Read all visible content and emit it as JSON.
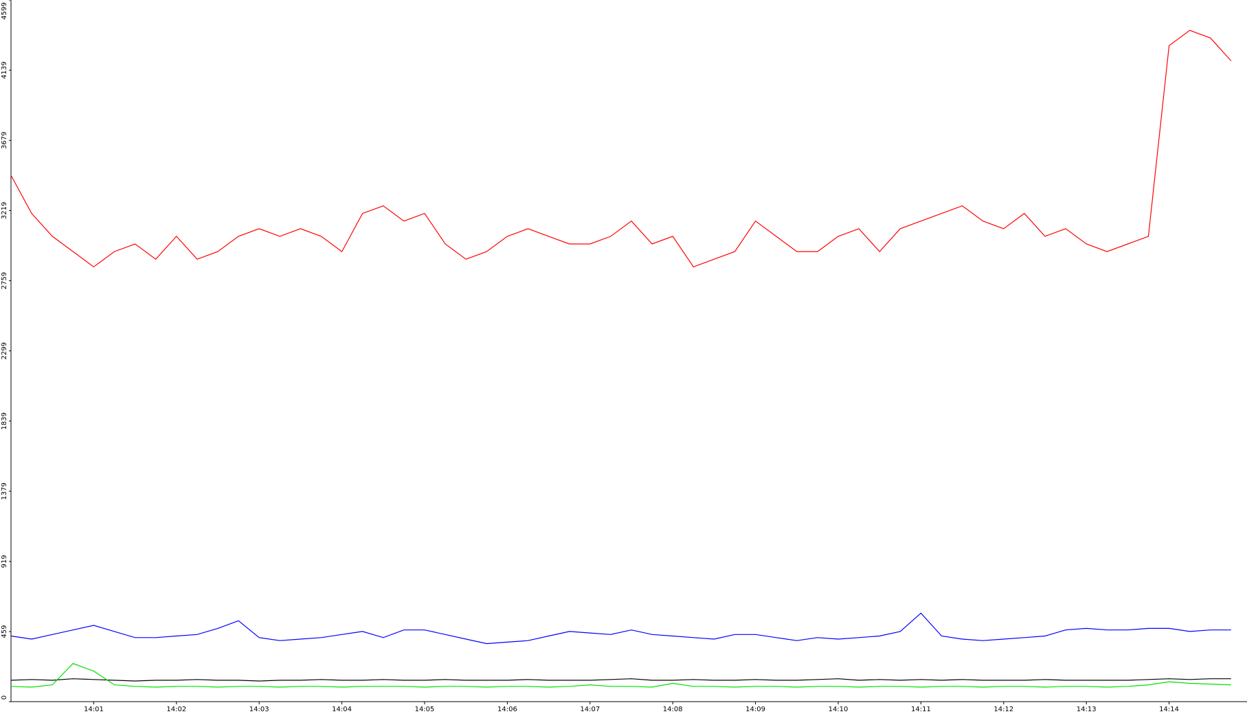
{
  "chart_data": {
    "type": "line",
    "x": [
      null,
      null,
      null,
      null,
      "14:01",
      null,
      null,
      null,
      "14:02",
      null,
      null,
      null,
      "14:03",
      null,
      null,
      null,
      "14:04",
      null,
      null,
      null,
      "14:05",
      null,
      null,
      null,
      "14:06",
      null,
      null,
      null,
      "14:07",
      null,
      null,
      null,
      "14:08",
      null,
      null,
      null,
      "14:09",
      null,
      null,
      null,
      "14:10",
      null,
      null,
      null,
      "14:11",
      null,
      null,
      null,
      "14:12",
      null,
      null,
      null,
      "14:13",
      null,
      null,
      null,
      "14:14",
      null,
      null,
      null
    ],
    "series": [
      {
        "color": "#ff0000",
        "values": [
          3450,
          3200,
          3050,
          2950,
          2850,
          2950,
          3000,
          2900,
          3050,
          2900,
          2950,
          3050,
          3100,
          3050,
          3100,
          3050,
          2950,
          3200,
          3250,
          3150,
          3200,
          3000,
          2900,
          2950,
          3050,
          3100,
          3050,
          3000,
          3000,
          3050,
          3150,
          3000,
          3050,
          2850,
          2900,
          2950,
          3150,
          3050,
          2950,
          2950,
          3050,
          3100,
          2950,
          3100,
          3150,
          3200,
          3250,
          3150,
          3100,
          3200,
          3050,
          3100,
          3000,
          2950,
          3000,
          3050,
          4300,
          4400,
          4350,
          4200
        ]
      },
      {
        "color": "#0000ff",
        "values": [
          430,
          410,
          440,
          470,
          500,
          460,
          420,
          420,
          430,
          440,
          480,
          530,
          420,
          400,
          410,
          420,
          440,
          460,
          420,
          470,
          470,
          440,
          410,
          380,
          390,
          400,
          430,
          460,
          450,
          440,
          470,
          440,
          430,
          420,
          410,
          440,
          440,
          420,
          400,
          420,
          410,
          420,
          430,
          460,
          580,
          430,
          410,
          400,
          410,
          420,
          430,
          470,
          480,
          470,
          470,
          480,
          480,
          460,
          470,
          470
        ]
      },
      {
        "color": "#000000",
        "values": [
          140,
          145,
          140,
          150,
          145,
          140,
          135,
          140,
          140,
          145,
          140,
          140,
          135,
          140,
          140,
          145,
          140,
          140,
          145,
          140,
          140,
          145,
          140,
          140,
          140,
          145,
          140,
          140,
          140,
          145,
          150,
          140,
          140,
          145,
          140,
          140,
          145,
          140,
          140,
          145,
          150,
          140,
          145,
          140,
          145,
          140,
          145,
          140,
          140,
          140,
          145,
          140,
          140,
          140,
          140,
          145,
          150,
          145,
          150,
          150
        ]
      },
      {
        "color": "#00e000",
        "values": [
          100,
          95,
          110,
          250,
          200,
          110,
          100,
          95,
          100,
          100,
          95,
          100,
          100,
          95,
          100,
          100,
          95,
          100,
          100,
          100,
          95,
          100,
          100,
          95,
          100,
          100,
          95,
          100,
          110,
          100,
          100,
          95,
          120,
          100,
          100,
          95,
          100,
          100,
          95,
          100,
          100,
          95,
          100,
          100,
          95,
          100,
          100,
          95,
          100,
          100,
          95,
          100,
          100,
          95,
          100,
          110,
          130,
          120,
          115,
          110
        ]
      }
    ],
    "ylim": [
      0,
      4599
    ],
    "yticks": [
      0,
      459,
      919,
      1379,
      1839,
      2299,
      2759,
      3219,
      3679,
      4139,
      4599
    ]
  }
}
